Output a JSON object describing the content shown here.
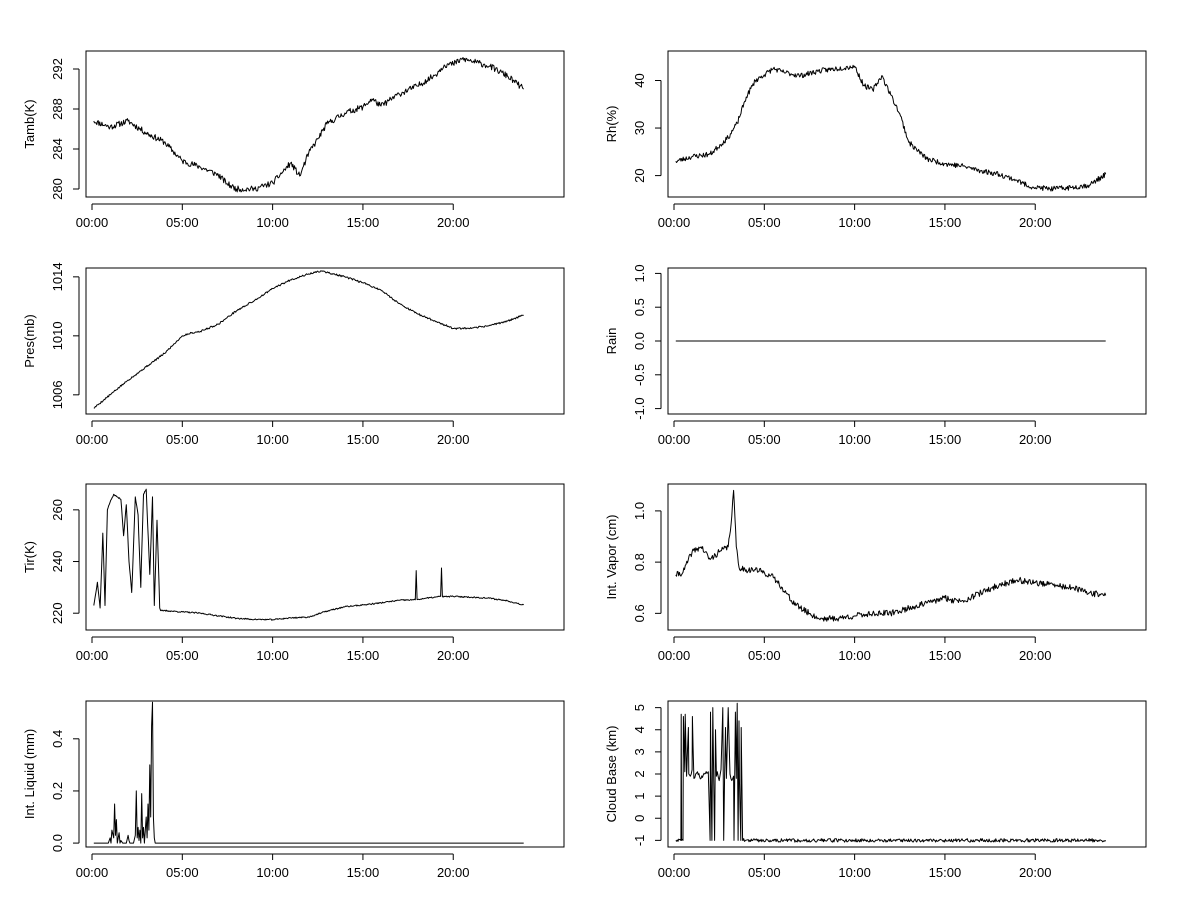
{
  "chart_data": [
    {
      "type": "line",
      "ylabel": "Tamb(K)",
      "xlabel": "",
      "x_ticks": [
        "00:00",
        "05:00",
        "10:00",
        "15:00",
        "20:00"
      ],
      "y_ticks": [
        "280",
        "284",
        "288",
        "292"
      ],
      "ylim": [
        279.2,
        293.8
      ],
      "series": [
        {
          "name": "",
          "x_hours": [
            0.1,
            1.0,
            2.0,
            3.0,
            4.0,
            5.0,
            6.0,
            7.0,
            7.5,
            8.0,
            9.0,
            10.0,
            11.0,
            11.5,
            12.0,
            12.5,
            13.0,
            14.0,
            15.0,
            15.5,
            16.0,
            17.0,
            18.0,
            19.0,
            19.5,
            20.0,
            20.5,
            21.0,
            22.0,
            23.0,
            23.9
          ],
          "values": [
            286.8,
            286.2,
            286.8,
            285.6,
            284.7,
            282.8,
            282.2,
            281.4,
            280.5,
            280.0,
            280.0,
            280.6,
            282.6,
            281.3,
            283.6,
            285.0,
            286.5,
            287.6,
            288.2,
            289.0,
            288.3,
            289.5,
            290.3,
            291.4,
            292.4,
            292.5,
            293.0,
            292.8,
            292.3,
            291.3,
            290.0
          ],
          "noise": 0.3,
          "seed": 11
        }
      ]
    },
    {
      "type": "line",
      "ylabel": "Rh(%)",
      "xlabel": "",
      "x_ticks": [
        "00:00",
        "05:00",
        "10:00",
        "15:00",
        "20:00"
      ],
      "y_ticks": [
        "20",
        "30",
        "40"
      ],
      "ylim": [
        15.5,
        46.2
      ],
      "series": [
        {
          "name": "",
          "x_hours": [
            0.1,
            1.0,
            2.0,
            3.0,
            3.5,
            4.0,
            4.5,
            5.0,
            5.5,
            6.0,
            7.0,
            8.0,
            9.0,
            10.0,
            10.5,
            11.0,
            11.5,
            12.0,
            12.5,
            13.0,
            14.0,
            15.0,
            16.0,
            17.0,
            18.0,
            19.0,
            19.5,
            20.0,
            21.0,
            22.0,
            23.0,
            23.9
          ],
          "values": [
            23.0,
            24.0,
            24.5,
            28.0,
            31.0,
            36.5,
            40.0,
            41.2,
            42.5,
            41.8,
            41.0,
            42.0,
            42.5,
            43.0,
            39.0,
            38.0,
            41.0,
            37.0,
            33.0,
            27.0,
            23.5,
            22.5,
            22.0,
            21.0,
            20.3,
            19.0,
            18.0,
            17.5,
            17.2,
            17.5,
            18.0,
            20.3
          ],
          "noise": 0.55,
          "seed": 23
        }
      ]
    },
    {
      "type": "line",
      "ylabel": "Pres(mb)",
      "xlabel": "",
      "x_ticks": [
        "00:00",
        "05:00",
        "10:00",
        "15:00",
        "20:00"
      ],
      "y_ticks": [
        "1006",
        "1010",
        "1014"
      ],
      "ylim": [
        1004.7,
        1014.6
      ],
      "series": [
        {
          "name": "",
          "x_hours": [
            0.1,
            1.0,
            2.0,
            3.0,
            4.0,
            5.0,
            5.5,
            6.0,
            7.0,
            8.0,
            9.0,
            10.0,
            11.0,
            12.0,
            12.7,
            13.0,
            14.0,
            15.0,
            16.0,
            17.0,
            18.0,
            19.0,
            20.0,
            21.0,
            22.0,
            23.0,
            23.9
          ],
          "values": [
            1005.1,
            1006.0,
            1007.0,
            1007.9,
            1008.8,
            1010.0,
            1010.2,
            1010.3,
            1010.8,
            1011.7,
            1012.4,
            1013.2,
            1013.8,
            1014.2,
            1014.4,
            1014.3,
            1014.0,
            1013.6,
            1013.1,
            1012.2,
            1011.5,
            1011.0,
            1010.5,
            1010.5,
            1010.7,
            1011.0,
            1011.4
          ],
          "noise": 0.06,
          "seed": 5
        }
      ]
    },
    {
      "type": "line",
      "ylabel": "Rain",
      "xlabel": "",
      "x_ticks": [
        "00:00",
        "05:00",
        "10:00",
        "15:00",
        "20:00"
      ],
      "y_ticks": [
        "-1.0",
        "-0.5",
        "0.0",
        "0.5",
        "1.0"
      ],
      "ylim": [
        -1.08,
        1.08
      ],
      "series": [
        {
          "name": "",
          "x_hours": [
            0.1,
            23.9
          ],
          "values": [
            0.0,
            0.0
          ],
          "noise": 0,
          "seed": 1
        }
      ]
    },
    {
      "type": "line",
      "ylabel": "Tir(K)",
      "xlabel": "",
      "x_ticks": [
        "00:00",
        "05:00",
        "10:00",
        "15:00",
        "20:00"
      ],
      "y_ticks": [
        "220",
        "240",
        "260"
      ],
      "ylim": [
        213.5,
        270.0
      ],
      "series": [
        {
          "name": "",
          "x_hours": [
            0.1,
            0.3,
            0.45,
            0.6,
            0.72,
            0.85,
            1.0,
            1.2,
            1.4,
            1.6,
            1.75,
            1.9,
            2.05,
            2.2,
            2.4,
            2.55,
            2.7,
            2.85,
            3.0,
            3.2,
            3.35,
            3.45,
            3.6,
            3.75,
            3.8,
            4.0,
            5.0,
            6.0,
            7.0,
            8.0,
            9.0,
            10.0,
            11.0,
            12.0,
            13.0,
            14.0,
            15.0,
            16.0,
            17.0,
            17.9,
            17.95,
            18.0,
            18.5,
            19.0,
            19.3,
            19.35,
            19.4,
            20.0,
            21.0,
            22.0,
            23.0,
            23.9
          ],
          "values": [
            223,
            232,
            222,
            251,
            223,
            260,
            263,
            266,
            265,
            264,
            250,
            262,
            240,
            228,
            265,
            258,
            230,
            266,
            268,
            235,
            265,
            223,
            256,
            222,
            221,
            221,
            220.5,
            220,
            219,
            218,
            217.6,
            217.5,
            218.2,
            218.5,
            220.8,
            222.5,
            223.2,
            224,
            225,
            225.2,
            236.5,
            225.3,
            225.8,
            226.2,
            226.5,
            237.5,
            226.4,
            226.5,
            226.2,
            225.8,
            224.8,
            223.2
          ],
          "noise": 0.25,
          "seed": 37
        }
      ]
    },
    {
      "type": "line",
      "ylabel": "Int. Vapor (cm)",
      "xlabel": "",
      "x_ticks": [
        "00:00",
        "05:00",
        "10:00",
        "15:00",
        "20:00"
      ],
      "y_ticks": [
        "0.6",
        "0.8",
        "1.0"
      ],
      "ylim": [
        0.535,
        1.105
      ],
      "series": [
        {
          "name": "",
          "x_hours": [
            0.1,
            0.5,
            1.0,
            1.5,
            2.0,
            2.5,
            3.0,
            3.2,
            3.3,
            3.45,
            3.6,
            4.0,
            4.5,
            5.0,
            5.5,
            6.0,
            6.5,
            7.0,
            7.5,
            8.0,
            9.0,
            10.0,
            11.0,
            12.0,
            13.0,
            14.0,
            15.0,
            15.5,
            16.0,
            17.0,
            18.0,
            19.0,
            20.0,
            21.0,
            22.0,
            23.0,
            23.9
          ],
          "values": [
            0.75,
            0.76,
            0.84,
            0.86,
            0.81,
            0.84,
            0.86,
            0.98,
            1.08,
            0.86,
            0.78,
            0.77,
            0.77,
            0.76,
            0.74,
            0.7,
            0.65,
            0.62,
            0.6,
            0.58,
            0.58,
            0.59,
            0.6,
            0.6,
            0.62,
            0.64,
            0.66,
            0.65,
            0.65,
            0.68,
            0.71,
            0.73,
            0.72,
            0.71,
            0.7,
            0.68,
            0.67
          ],
          "noise": 0.012,
          "seed": 41
        }
      ]
    },
    {
      "type": "line",
      "ylabel": "Int. Liquid (mm)",
      "xlabel": "",
      "x_ticks": [
        "00:00",
        "05:00",
        "10:00",
        "15:00",
        "20:00"
      ],
      "y_ticks": [
        "0.0",
        "0.2",
        "0.4"
      ],
      "ylim": [
        -0.015,
        0.545
      ],
      "series": [
        {
          "name": "",
          "x_hours": [
            0.1,
            0.9,
            1.0,
            1.05,
            1.1,
            1.2,
            1.25,
            1.3,
            1.35,
            1.4,
            1.5,
            1.55,
            1.6,
            1.7,
            1.9,
            2.0,
            2.05,
            2.1,
            2.3,
            2.4,
            2.45,
            2.5,
            2.55,
            2.6,
            2.65,
            2.7,
            2.75,
            2.8,
            2.85,
            2.9,
            3.0,
            3.05,
            3.1,
            3.15,
            3.2,
            3.25,
            3.3,
            3.35,
            3.4,
            3.45,
            3.5,
            23.9
          ],
          "values": [
            0.0,
            0.0,
            0.02,
            0.0,
            0.05,
            0.02,
            0.15,
            0.03,
            0.09,
            0.0,
            0.04,
            0.0,
            0.01,
            0.0,
            0.0,
            0.03,
            0.01,
            0.0,
            0.0,
            0.03,
            0.2,
            0.02,
            0.06,
            0.01,
            0.05,
            0.0,
            0.19,
            0.02,
            0.06,
            0.0,
            0.1,
            0.02,
            0.15,
            0.05,
            0.3,
            0.1,
            0.45,
            0.54,
            0.1,
            0.02,
            0.0,
            0.0
          ],
          "noise": 0,
          "seed": 3
        }
      ]
    },
    {
      "type": "line",
      "ylabel": "Cloud Base (km)",
      "xlabel": "",
      "x_ticks": [
        "00:00",
        "05:00",
        "10:00",
        "15:00",
        "20:00"
      ],
      "y_ticks": [
        "-1",
        "0",
        "1",
        "2",
        "3",
        "4",
        "5"
      ],
      "ylim": [
        -1.3,
        5.3
      ],
      "series": [
        {
          "name": "",
          "x_hours": [
            0.1,
            0.38,
            0.4,
            0.42,
            0.5,
            0.52,
            0.6,
            0.62,
            0.7,
            0.8,
            0.82,
            0.9,
            1.0,
            1.02,
            1.1,
            1.2,
            1.3,
            1.5,
            1.7,
            1.9,
            2.0,
            2.02,
            2.05,
            2.1,
            2.15,
            2.2,
            2.25,
            2.3,
            2.35,
            2.4,
            2.5,
            2.6,
            2.7,
            2.75,
            2.8,
            2.85,
            2.9,
            3.0,
            3.1,
            3.2,
            3.3,
            3.32,
            3.4,
            3.45,
            3.5,
            3.55,
            3.6,
            3.62,
            3.7,
            3.72,
            3.8,
            3.82,
            23.9
          ],
          "values": [
            -1.0,
            -1.0,
            4.7,
            -1.0,
            -1.0,
            4.6,
            2.1,
            4.7,
            1.9,
            4.1,
            2.0,
            1.9,
            2.2,
            4.6,
            1.8,
            2.0,
            2.1,
            1.8,
            2.0,
            2.1,
            -1.0,
            4.8,
            2.0,
            -1.0,
            5.0,
            1.8,
            -1.0,
            4.0,
            1.9,
            2.1,
            1.7,
            2.2,
            5.0,
            -1.0,
            1.9,
            4.1,
            1.8,
            5.0,
            2.0,
            1.7,
            1.9,
            -1.0,
            4.8,
            1.8,
            5.2,
            -1.0,
            4.4,
            1.8,
            -1.0,
            4.1,
            -1.0,
            -1.0,
            -1.0
          ],
          "noise": 0.08,
          "seed": 59
        }
      ]
    }
  ]
}
